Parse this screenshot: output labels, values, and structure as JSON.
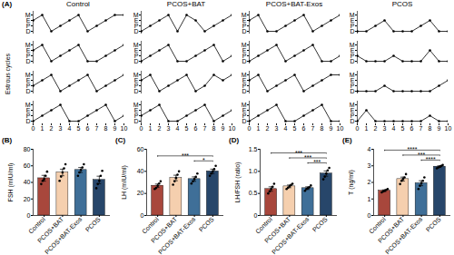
{
  "chart_data": [
    {
      "type": "line",
      "panel_label": "(A)",
      "ylabel": "Estrous cycles",
      "ycategories": [
        "M",
        "E",
        "P",
        "D"
      ],
      "x": [
        0,
        1,
        2,
        3,
        4,
        5,
        6,
        7,
        8,
        9,
        10
      ],
      "xlim": [
        0,
        10
      ],
      "xticks": [
        0,
        1,
        2,
        3,
        4,
        5,
        6,
        7,
        8,
        9,
        10
      ],
      "color": "#000000",
      "marker": "circle",
      "groups": [
        {
          "name": "Control",
          "series": [
            {
              "values": [
                "E",
                "M",
                "D",
                "P",
                "E",
                "M",
                "D",
                "P",
                "E",
                "M",
                "M"
              ]
            },
            {
              "values": [
                "E",
                "M",
                "D",
                "P",
                "E",
                "M",
                "D",
                "D",
                "P",
                "E",
                "M"
              ]
            },
            {
              "values": [
                "P",
                "E",
                "M",
                "D",
                "P",
                "E",
                "M",
                "D",
                "P",
                "E",
                "M"
              ]
            },
            {
              "values": [
                "D",
                "P",
                "E",
                "M",
                "D",
                "D",
                "P",
                "E",
                "M",
                "D",
                "P"
              ]
            }
          ]
        },
        {
          "name": "PCOS+BAT",
          "series": [
            {
              "values": [
                "D",
                "P",
                "E",
                "M",
                "D",
                "M",
                "E",
                "D",
                "P",
                "E",
                "M"
              ]
            },
            {
              "values": [
                "D",
                "P",
                "E",
                "M",
                "D",
                "D",
                "P",
                "E",
                "M",
                "D",
                "P"
              ]
            },
            {
              "values": [
                "E",
                "M",
                "D",
                "P",
                "E",
                "M",
                "D",
                "P",
                "M",
                "E",
                "M"
              ]
            },
            {
              "values": [
                "P",
                "E",
                "M",
                "D",
                "D",
                "P",
                "E",
                "M",
                "D",
                "P",
                "E"
              ]
            }
          ]
        },
        {
          "name": "PCOS+BAT-Exos",
          "series": [
            {
              "values": [
                "E",
                "M",
                "D",
                "D",
                "P",
                "E",
                "M",
                "D",
                "P",
                "E",
                "M"
              ]
            },
            {
              "values": [
                "D",
                "P",
                "E",
                "M",
                "D",
                "P",
                "E",
                "M",
                "D",
                "D",
                "P"
              ]
            },
            {
              "values": [
                "E",
                "M",
                "D",
                "P",
                "E",
                "M",
                "D",
                "P",
                "E",
                "M",
                "M"
              ]
            },
            {
              "values": [
                "D",
                "P",
                "E",
                "M",
                "D",
                "D",
                "P",
                "E",
                "M",
                "D",
                "D"
              ]
            }
          ]
        },
        {
          "name": "PCOS",
          "series": [
            {
              "values": [
                "D",
                "D",
                "P",
                "E",
                "D",
                "D",
                "D",
                "P",
                "E",
                "D",
                "D"
              ]
            },
            {
              "values": [
                "P",
                "D",
                "D",
                "D",
                "P",
                "D",
                "D",
                "D",
                "E",
                "D",
                "D"
              ]
            },
            {
              "values": [
                "D",
                "D",
                "D",
                "P",
                "D",
                "D",
                "D",
                "D",
                "D",
                "P",
                "E"
              ]
            },
            {
              "values": [
                "D",
                "E",
                "D",
                "D",
                "D",
                "D",
                "D",
                "D",
                "P",
                "D",
                "D"
              ]
            }
          ]
        }
      ]
    },
    {
      "type": "bar",
      "panel_label": "(B)",
      "ylabel": "FSH (mIU/ml)",
      "categories": [
        "Control",
        "PCOS+BAT",
        "PCOS+BAT-Exos",
        "PCOS"
      ],
      "values": [
        45,
        52,
        55,
        43
      ],
      "errors": [
        3.5,
        4,
        3,
        4.5
      ],
      "points": [
        [
          38,
          42,
          44,
          48,
          53
        ],
        [
          42,
          47,
          52,
          57,
          62
        ],
        [
          48,
          52,
          55,
          58,
          62
        ],
        [
          33,
          38,
          42,
          48,
          54
        ]
      ],
      "colors": [
        "#a8473c",
        "#f5cfae",
        "#3f6f98",
        "#27466a"
      ],
      "ylim": [
        0,
        80
      ],
      "yticks": [
        0,
        20,
        40,
        60,
        80
      ],
      "significance": []
    },
    {
      "type": "bar",
      "panel_label": "(C)",
      "ylabel": "LH (mIU/ml)",
      "categories": [
        "Control",
        "PCOS+BAT",
        "PCOS+BAT-Exos",
        "PCOS"
      ],
      "values": [
        27,
        34,
        33,
        40
      ],
      "errors": [
        1.5,
        2.5,
        2,
        2
      ],
      "points": [
        [
          24,
          25,
          27,
          29,
          31
        ],
        [
          28,
          31,
          34,
          37,
          40
        ],
        [
          29,
          31,
          33,
          35,
          38
        ],
        [
          36,
          38,
          40,
          42,
          45
        ]
      ],
      "colors": [
        "#a8473c",
        "#f5cfae",
        "#3f6f98",
        "#27466a"
      ],
      "ylim": [
        0,
        60
      ],
      "yticks": [
        0,
        20,
        40,
        60
      ],
      "significance": [
        {
          "from": "PCOS+BAT-Exos",
          "to": "PCOS",
          "label": "*"
        },
        {
          "from": "Control",
          "to": "PCOS",
          "label": "***"
        }
      ]
    },
    {
      "type": "bar",
      "panel_label": "(D)",
      "ylabel": "LH/FSH (ratio)",
      "categories": [
        "Control",
        "PCOS+BAT",
        "PCOS+BAT-Exos",
        "PCOS"
      ],
      "values": [
        0.6,
        0.66,
        0.62,
        0.95
      ],
      "errors": [
        0.05,
        0.03,
        0.03,
        0.06
      ],
      "points": [
        [
          0.5,
          0.55,
          0.6,
          0.65,
          0.72
        ],
        [
          0.6,
          0.63,
          0.66,
          0.69,
          0.72
        ],
        [
          0.56,
          0.6,
          0.62,
          0.64,
          0.68
        ],
        [
          0.82,
          0.88,
          0.95,
          1.02,
          1.08
        ]
      ],
      "colors": [
        "#a8473c",
        "#f5cfae",
        "#3f6f98",
        "#27466a"
      ],
      "ylim": [
        0,
        1.5
      ],
      "yticks": [
        0,
        0.5,
        {
          "value": 1,
          "label": "1.0"
        },
        1.5
      ],
      "significance": [
        {
          "from": "PCOS+BAT-Exos",
          "to": "PCOS",
          "label": "***"
        },
        {
          "from": "PCOS+BAT",
          "to": "PCOS",
          "label": "***"
        },
        {
          "from": "Control",
          "to": "PCOS",
          "label": "***"
        }
      ]
    },
    {
      "type": "bar",
      "panel_label": "(E)",
      "ylabel": "T (ng/ml)",
      "categories": [
        "Control",
        "PCOS+BAT",
        "PCOS+BAT-Exos",
        "PCOS"
      ],
      "values": [
        1.5,
        2.2,
        1.95,
        2.95
      ],
      "errors": [
        0.05,
        0.12,
        0.15,
        0.05
      ],
      "points": [
        [
          1.4,
          1.45,
          1.5,
          1.55,
          1.6
        ],
        [
          1.9,
          2.1,
          2.2,
          2.3,
          2.5
        ],
        [
          1.6,
          1.8,
          1.95,
          2.1,
          2.3
        ],
        [
          2.85,
          2.9,
          2.95,
          3.0,
          3.05
        ]
      ],
      "colors": [
        "#a8473c",
        "#f5cfae",
        "#3f6f98",
        "#27466a"
      ],
      "ylim": [
        0,
        4
      ],
      "yticks": [
        0,
        1,
        2,
        3,
        4
      ],
      "significance": [
        {
          "from": "PCOS+BAT-Exos",
          "to": "PCOS",
          "label": "****"
        },
        {
          "from": "PCOS+BAT",
          "to": "PCOS",
          "label": "***"
        },
        {
          "from": "Control",
          "to": "PCOS",
          "label": "****"
        }
      ]
    }
  ]
}
